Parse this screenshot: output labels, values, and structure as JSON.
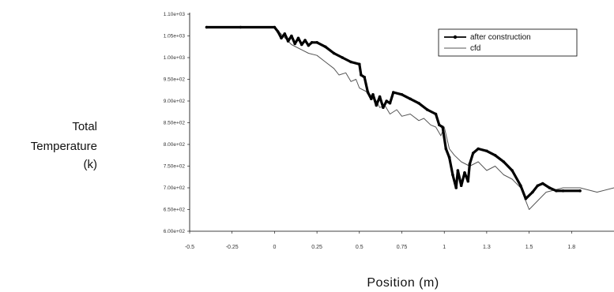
{
  "chart_data": {
    "type": "line",
    "ylabel_lines": [
      "Total",
      "Temperature",
      "(k)"
    ],
    "xlabel": "Position (m)",
    "x_ticks": [
      "-0.5",
      "-0.25",
      "0",
      "0.25",
      "0.5",
      "0.75",
      "1",
      "1.3",
      "1.5",
      "1.8"
    ],
    "x_tick_values": [
      -0.5,
      -0.25,
      0,
      0.25,
      0.5,
      0.75,
      1,
      1.25,
      1.5,
      1.75
    ],
    "y_ticks": [
      "1.10e+03",
      "1.05e+03",
      "1.00e+03",
      "9.50e+02",
      "9.00e+02",
      "8.50e+02",
      "8.00e+02",
      "7.50e+02",
      "7.00e+02",
      "6.50e+02",
      "6.00e+02"
    ],
    "y_tick_values": [
      1100,
      1050,
      1000,
      950,
      900,
      850,
      800,
      750,
      700,
      650,
      600
    ],
    "xlim": [
      -0.5,
      2.0
    ],
    "ylim": [
      600,
      1100
    ],
    "grid": false,
    "legend_position": "top-right",
    "series": [
      {
        "name": "after construction",
        "color": "#000000",
        "style": "thick-markers",
        "x": [
          -0.4,
          -0.2,
          0.0,
          0.02,
          0.04,
          0.06,
          0.08,
          0.1,
          0.12,
          0.14,
          0.16,
          0.18,
          0.2,
          0.22,
          0.25,
          0.3,
          0.35,
          0.4,
          0.45,
          0.5,
          0.51,
          0.53,
          0.55,
          0.57,
          0.58,
          0.6,
          0.62,
          0.64,
          0.66,
          0.68,
          0.7,
          0.75,
          0.8,
          0.85,
          0.9,
          0.95,
          0.97,
          0.99,
          1.01,
          1.03,
          1.05,
          1.07,
          1.08,
          1.1,
          1.12,
          1.14,
          1.15,
          1.17,
          1.2,
          1.25,
          1.3,
          1.35,
          1.4,
          1.45,
          1.48,
          1.52,
          1.55,
          1.58,
          1.62,
          1.66,
          1.7,
          1.8
        ],
        "y": [
          1070,
          1070,
          1070,
          1060,
          1045,
          1055,
          1038,
          1050,
          1032,
          1045,
          1030,
          1040,
          1028,
          1035,
          1035,
          1025,
          1010,
          1000,
          990,
          985,
          960,
          955,
          920,
          905,
          915,
          890,
          910,
          885,
          900,
          895,
          920,
          915,
          905,
          895,
          880,
          870,
          845,
          840,
          790,
          770,
          730,
          700,
          740,
          705,
          735,
          715,
          755,
          780,
          790,
          785,
          775,
          760,
          740,
          705,
          675,
          690,
          705,
          710,
          700,
          693,
          693,
          693
        ]
      },
      {
        "name": "cfd",
        "color": "#555555",
        "style": "thin",
        "x": [
          0.0,
          0.05,
          0.1,
          0.15,
          0.2,
          0.25,
          0.3,
          0.35,
          0.38,
          0.42,
          0.45,
          0.48,
          0.5,
          0.55,
          0.6,
          0.62,
          0.65,
          0.68,
          0.72,
          0.75,
          0.8,
          0.85,
          0.88,
          0.92,
          0.95,
          0.98,
          1.0,
          1.03,
          1.06,
          1.1,
          1.15,
          1.2,
          1.25,
          1.3,
          1.35,
          1.4,
          1.45,
          1.5,
          1.55,
          1.6,
          1.7,
          1.8,
          1.9,
          2.0
        ],
        "y": [
          1070,
          1050,
          1030,
          1020,
          1010,
          1005,
          990,
          975,
          960,
          965,
          945,
          950,
          930,
          920,
          900,
          885,
          890,
          870,
          880,
          865,
          870,
          855,
          860,
          845,
          840,
          820,
          840,
          790,
          775,
          760,
          750,
          760,
          740,
          750,
          730,
          720,
          700,
          650,
          670,
          690,
          700,
          700,
          690,
          700
        ]
      }
    ]
  }
}
